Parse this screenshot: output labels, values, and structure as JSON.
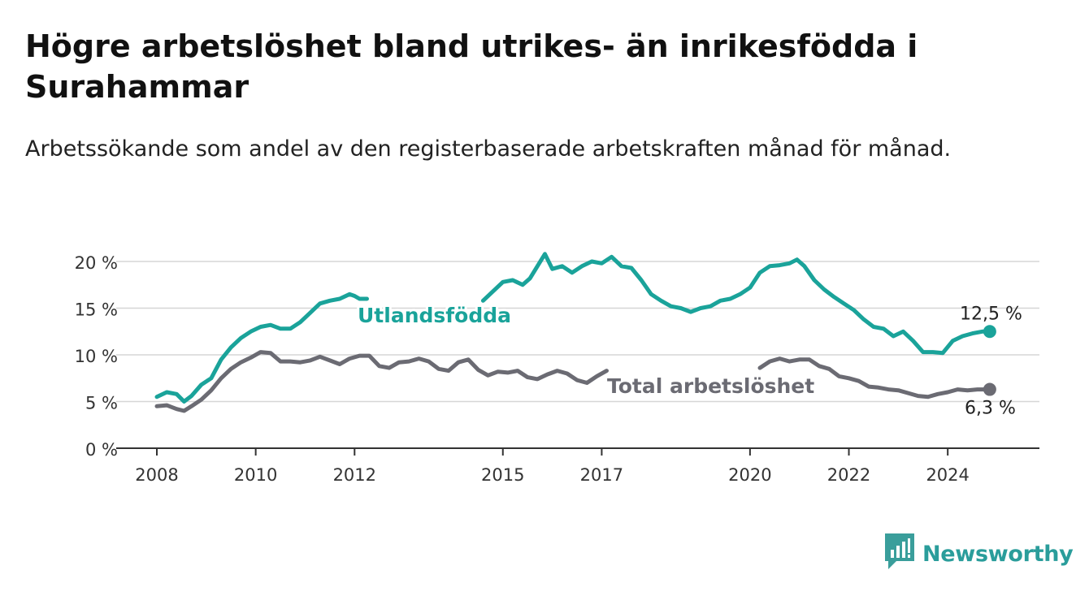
{
  "title": "Högre arbetslöshet bland utrikes- än inrikesfödda i Surahammar",
  "subtitle": "Arbetssökande som andel av den registerbaserade arbetskraften månad för månad.",
  "brand": {
    "name": "Newsworthy",
    "icon": "newsworthy-logo-icon",
    "color": "#3a9e9b"
  },
  "chart_data": {
    "type": "line",
    "xlabel": "",
    "ylabel": "",
    "ylim": [
      0,
      20
    ],
    "yticks": [
      0,
      5,
      10,
      15,
      20
    ],
    "ytick_labels": [
      "0 %",
      "5 %",
      "10 %",
      "15 %",
      "20 %"
    ],
    "xlim": [
      2008.0,
      2025.0
    ],
    "xticks": [
      2008,
      2010,
      2012,
      2015,
      2017,
      2020,
      2022,
      2024
    ],
    "xtick_labels": [
      "2008",
      "2010",
      "2012",
      "2015",
      "2017",
      "2020",
      "2022",
      "2024"
    ],
    "grid": true,
    "series": [
      {
        "name": "Utlandsfödda",
        "color": "#1aa39a",
        "end_label": "12,5 %",
        "x": [
          2008.0,
          2008.2,
          2008.4,
          2008.55,
          2008.7,
          2008.9,
          2009.1,
          2009.3,
          2009.5,
          2009.7,
          2009.9,
          2010.1,
          2010.3,
          2010.5,
          2010.7,
          2010.9,
          2011.1,
          2011.3,
          2011.5,
          2011.7,
          2011.9,
          2012.0,
          2012.1,
          2012.25,
          2014.6,
          2014.8,
          2015.0,
          2015.2,
          2015.4,
          2015.55,
          2015.7,
          2015.85,
          2016.0,
          2016.2,
          2016.4,
          2016.6,
          2016.8,
          2017.0,
          2017.2,
          2017.4,
          2017.6,
          2017.8,
          2018.0,
          2018.2,
          2018.4,
          2018.6,
          2018.8,
          2019.0,
          2019.2,
          2019.4,
          2019.6,
          2019.8,
          2020.0,
          2020.2,
          2020.4,
          2020.6,
          2020.8,
          2020.95,
          2021.1,
          2021.3,
          2021.5,
          2021.7,
          2021.9,
          2022.1,
          2022.3,
          2022.5,
          2022.7,
          2022.9,
          2023.1,
          2023.3,
          2023.5,
          2023.7,
          2023.9,
          2024.1,
          2024.3,
          2024.5,
          2024.7,
          2024.85
        ],
        "y": [
          5.5,
          6.0,
          5.8,
          5.0,
          5.6,
          6.8,
          7.5,
          9.5,
          10.8,
          11.8,
          12.5,
          13.0,
          13.2,
          12.8,
          12.8,
          13.5,
          14.5,
          15.5,
          15.8,
          16.0,
          16.5,
          16.3,
          16.0,
          16.0,
          15.8,
          16.8,
          17.8,
          18.0,
          17.5,
          18.2,
          19.5,
          20.8,
          19.2,
          19.5,
          18.8,
          19.5,
          20.0,
          19.8,
          20.5,
          19.5,
          19.3,
          18.0,
          16.5,
          15.8,
          15.2,
          15.0,
          14.6,
          15.0,
          15.2,
          15.8,
          16.0,
          16.5,
          17.2,
          18.8,
          19.5,
          19.6,
          19.8,
          20.2,
          19.5,
          18.0,
          17.0,
          16.2,
          15.5,
          14.8,
          13.8,
          13.0,
          12.8,
          12.0,
          12.5,
          11.5,
          10.3,
          10.3,
          10.2,
          11.5,
          12.0,
          12.3,
          12.5,
          12.5
        ]
      },
      {
        "name": "Total arbetslöshet",
        "color": "#6b6b73",
        "end_label": "6,3 %",
        "x": [
          2008.0,
          2008.2,
          2008.4,
          2008.55,
          2008.7,
          2008.9,
          2009.1,
          2009.3,
          2009.5,
          2009.7,
          2009.9,
          2010.1,
          2010.3,
          2010.5,
          2010.7,
          2010.9,
          2011.1,
          2011.3,
          2011.5,
          2011.7,
          2011.9,
          2012.1,
          2012.3,
          2012.5,
          2012.7,
          2012.9,
          2013.1,
          2013.3,
          2013.5,
          2013.7,
          2013.9,
          2014.1,
          2014.3,
          2014.5,
          2014.7,
          2014.9,
          2015.1,
          2015.3,
          2015.5,
          2015.7,
          2015.9,
          2016.1,
          2016.3,
          2016.5,
          2016.7,
          2016.9,
          2017.1,
          2020.2,
          2020.4,
          2020.6,
          2020.8,
          2021.0,
          2021.2,
          2021.4,
          2021.6,
          2021.8,
          2022.0,
          2022.2,
          2022.4,
          2022.6,
          2022.8,
          2023.0,
          2023.2,
          2023.4,
          2023.6,
          2023.8,
          2024.0,
          2024.2,
          2024.4,
          2024.6,
          2024.85
        ],
        "y": [
          4.5,
          4.6,
          4.2,
          4.0,
          4.5,
          5.2,
          6.2,
          7.5,
          8.5,
          9.2,
          9.7,
          10.3,
          10.2,
          9.3,
          9.3,
          9.2,
          9.4,
          9.8,
          9.4,
          9.0,
          9.6,
          9.9,
          9.9,
          8.8,
          8.6,
          9.2,
          9.3,
          9.6,
          9.3,
          8.5,
          8.3,
          9.2,
          9.5,
          8.4,
          7.8,
          8.2,
          8.1,
          8.3,
          7.6,
          7.4,
          7.9,
          8.3,
          8.0,
          7.3,
          7.0,
          7.7,
          8.3,
          8.6,
          9.3,
          9.6,
          9.3,
          9.5,
          9.5,
          8.8,
          8.5,
          7.7,
          7.5,
          7.2,
          6.6,
          6.5,
          6.3,
          6.2,
          5.9,
          5.6,
          5.5,
          5.8,
          6.0,
          6.3,
          6.2,
          6.3,
          6.3
        ]
      }
    ],
    "annotations": [
      {
        "text": "Utlandsfödda",
        "series": "Utlandsfödda"
      },
      {
        "text": "Total arbetslöshet",
        "series": "Total arbetslöshet"
      }
    ]
  }
}
